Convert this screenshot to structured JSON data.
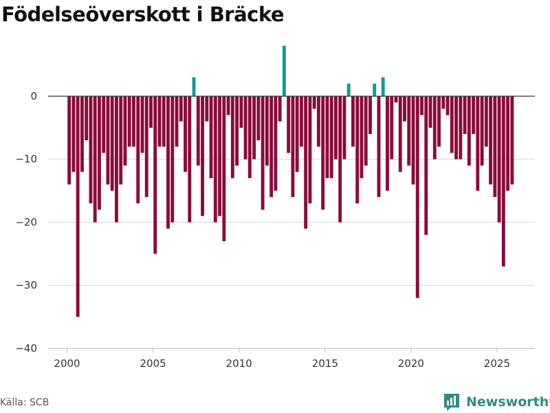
{
  "title": "Födelseöverskott i Bräcke",
  "source": "Källa: SCB",
  "brand": {
    "name": "Newsworthy",
    "icon": "bar-chart-logo-icon"
  },
  "colors": {
    "positive": "#139a94",
    "negative": "#8c0a3b",
    "brand": "#2d8c8a"
  },
  "chart_data": {
    "type": "bar",
    "title": "Födelseöverskott i Bräcke",
    "xlabel": "",
    "ylabel": "",
    "x_start": 2000,
    "period": "quarter",
    "xlim": [
      1998.9,
      2027.2
    ],
    "ylim": [
      -40,
      8.5
    ],
    "x_ticks": [
      2000,
      2005,
      2010,
      2015,
      2020,
      2025
    ],
    "y_ticks": [
      0,
      -10,
      -20,
      -30,
      -40
    ],
    "y_tick_labels": [
      "0",
      "−10",
      "−20",
      "−30",
      "−40"
    ],
    "grid": true,
    "values": [
      -14,
      -12,
      -35,
      -12,
      -7,
      -17,
      -20,
      -18,
      -9,
      -14,
      -15,
      -20,
      -14,
      -11,
      -8,
      -8,
      -17,
      -9,
      -16,
      -5,
      -25,
      -8,
      -8,
      -21,
      -20,
      -8,
      -4,
      -12,
      -20,
      3,
      -11,
      -19,
      -4,
      -13,
      -20,
      -19,
      -23,
      -3,
      -13,
      -11,
      -5,
      -10,
      -13,
      -10,
      -7,
      -18,
      -11,
      -16,
      -15,
      -4,
      8,
      -9,
      -16,
      -12,
      -8,
      -21,
      -17,
      -2,
      -8,
      -18,
      -13,
      -13,
      -10,
      -20,
      -10,
      2,
      -8,
      -17,
      -13,
      -11,
      -6,
      2,
      -16,
      3,
      -15,
      -10,
      -1,
      -12,
      -4,
      -11,
      -14,
      -32,
      -3,
      -22,
      -5,
      -10,
      -8,
      -2,
      -3,
      -9,
      -10,
      -10,
      -6,
      -11,
      -6,
      -15,
      -11,
      -8,
      -14,
      -16,
      -20,
      -27,
      -15,
      -14
    ]
  }
}
